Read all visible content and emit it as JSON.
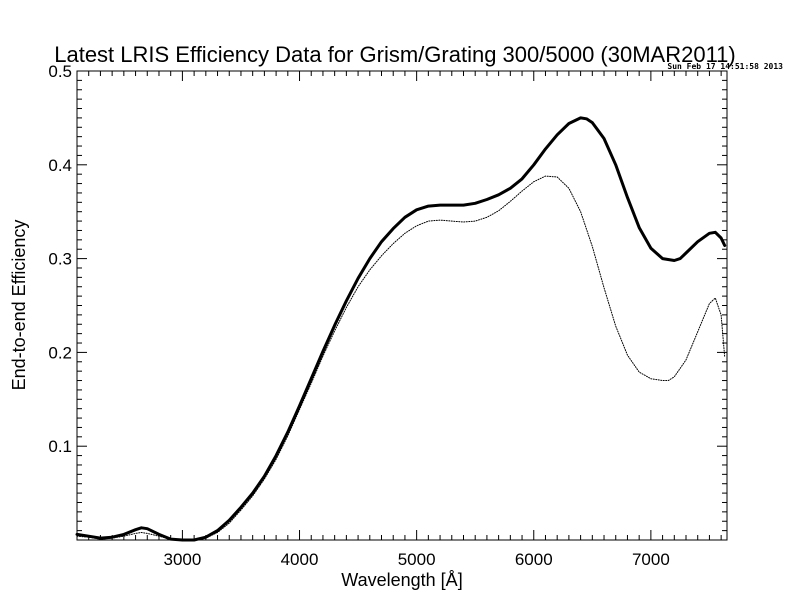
{
  "chart_data": {
    "type": "line",
    "title": "Latest LRIS Efficiency Data for Grism/Grating 300/5000 (30MAR2011)",
    "timestamp": "Sun Feb 17 14:51:58 2013",
    "xlabel": "Wavelength [Å]",
    "ylabel": "End-to-end Efficiency",
    "xlim": [
      2100,
      7650
    ],
    "ylim": [
      0.0,
      0.5
    ],
    "x_ticks": [
      3000,
      4000,
      5000,
      6000,
      7000
    ],
    "y_ticks": [
      0.1,
      0.2,
      0.3,
      0.4,
      0.5
    ],
    "x_tick_labels": [
      "3000",
      "4000",
      "5000",
      "6000",
      "7000"
    ],
    "y_tick_labels": [
      "0.1",
      "0.2",
      "0.3",
      "0.4",
      "0.5"
    ],
    "grid": false,
    "series": [
      {
        "style": "solid-thick",
        "color": "#000000",
        "x": [
          2100,
          2200,
          2300,
          2400,
          2500,
          2600,
          2650,
          2700,
          2800,
          2900,
          3000,
          3100,
          3200,
          3300,
          3400,
          3500,
          3600,
          3700,
          3800,
          3900,
          4000,
          4100,
          4200,
          4300,
          4400,
          4500,
          4600,
          4700,
          4800,
          4900,
          5000,
          5100,
          5200,
          5300,
          5400,
          5500,
          5600,
          5700,
          5800,
          5900,
          6000,
          6100,
          6200,
          6300,
          6400,
          6450,
          6500,
          6600,
          6700,
          6800,
          6900,
          7000,
          7100,
          7200,
          7250,
          7300,
          7400,
          7500,
          7550,
          7600,
          7630
        ],
        "y": [
          0.006,
          0.004,
          0.002,
          0.003,
          0.006,
          0.011,
          0.013,
          0.012,
          0.006,
          0.001,
          0.0,
          0.0,
          0.003,
          0.01,
          0.021,
          0.035,
          0.05,
          0.068,
          0.09,
          0.115,
          0.143,
          0.172,
          0.201,
          0.229,
          0.255,
          0.279,
          0.3,
          0.318,
          0.332,
          0.344,
          0.352,
          0.356,
          0.357,
          0.357,
          0.357,
          0.359,
          0.363,
          0.368,
          0.375,
          0.385,
          0.4,
          0.417,
          0.432,
          0.444,
          0.45,
          0.449,
          0.445,
          0.428,
          0.4,
          0.365,
          0.333,
          0.311,
          0.3,
          0.298,
          0.3,
          0.306,
          0.318,
          0.327,
          0.328,
          0.322,
          0.314
        ]
      },
      {
        "style": "dotted",
        "color": "#000000",
        "x": [
          2100,
          2200,
          2300,
          2400,
          2500,
          2600,
          2650,
          2700,
          2800,
          2900,
          3000,
          3100,
          3200,
          3300,
          3400,
          3500,
          3600,
          3700,
          3800,
          3900,
          4000,
          4100,
          4200,
          4300,
          4400,
          4500,
          4600,
          4700,
          4800,
          4900,
          5000,
          5100,
          5200,
          5300,
          5400,
          5500,
          5600,
          5700,
          5800,
          5900,
          6000,
          6100,
          6200,
          6300,
          6400,
          6500,
          6600,
          6700,
          6800,
          6900,
          7000,
          7100,
          7150,
          7200,
          7300,
          7400,
          7500,
          7550,
          7600,
          7630
        ],
        "y": [
          0.004,
          0.003,
          0.001,
          0.002,
          0.004,
          0.007,
          0.008,
          0.007,
          0.004,
          0.001,
          0.0,
          0.0,
          0.002,
          0.008,
          0.018,
          0.032,
          0.047,
          0.065,
          0.086,
          0.111,
          0.139,
          0.167,
          0.196,
          0.223,
          0.248,
          0.27,
          0.288,
          0.303,
          0.316,
          0.327,
          0.335,
          0.34,
          0.341,
          0.34,
          0.339,
          0.34,
          0.344,
          0.351,
          0.361,
          0.372,
          0.382,
          0.388,
          0.387,
          0.375,
          0.35,
          0.313,
          0.269,
          0.228,
          0.197,
          0.179,
          0.172,
          0.17,
          0.17,
          0.174,
          0.192,
          0.222,
          0.252,
          0.258,
          0.24,
          0.195
        ]
      }
    ]
  }
}
